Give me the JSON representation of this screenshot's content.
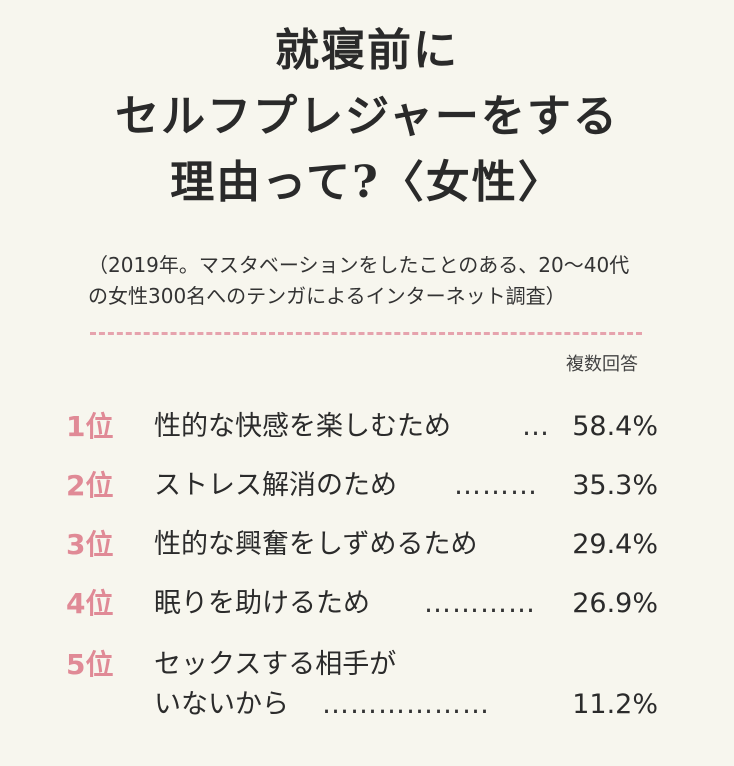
{
  "title": {
    "line1": "就寝前に",
    "line2": "セルフプレジャーをする",
    "line3": "理由って?〈女性〉"
  },
  "note": {
    "line1": "（2019年。マスタベーションをしたことのある、20〜40代",
    "line2": "の女性300名へのテンガによるインターネット調査）"
  },
  "multiple_answers_label": "複数回答",
  "rankings": [
    {
      "rank": "1位",
      "reason": "性的な快感を楽しむため",
      "dots": "…",
      "percent": "58.4%"
    },
    {
      "rank": "2位",
      "reason": "ストレス解消のため",
      "dots": "………",
      "percent": "35.3%"
    },
    {
      "rank": "3位",
      "reason": "性的な興奮をしずめるため",
      "dots": "",
      "percent": "29.4%"
    },
    {
      "rank": "4位",
      "reason": "眠りを助けるため",
      "dots": "…………",
      "percent": "26.9%"
    },
    {
      "rank": "5位",
      "reason_line1": "セックスする相手が",
      "reason_line2": "いないから",
      "dots": "………………",
      "percent": "11.2%"
    }
  ],
  "colors": {
    "background": "#f7f6ee",
    "rank_accent": "#e08a96",
    "divider": "#e6a3ad",
    "text": "#2b2b2b"
  }
}
